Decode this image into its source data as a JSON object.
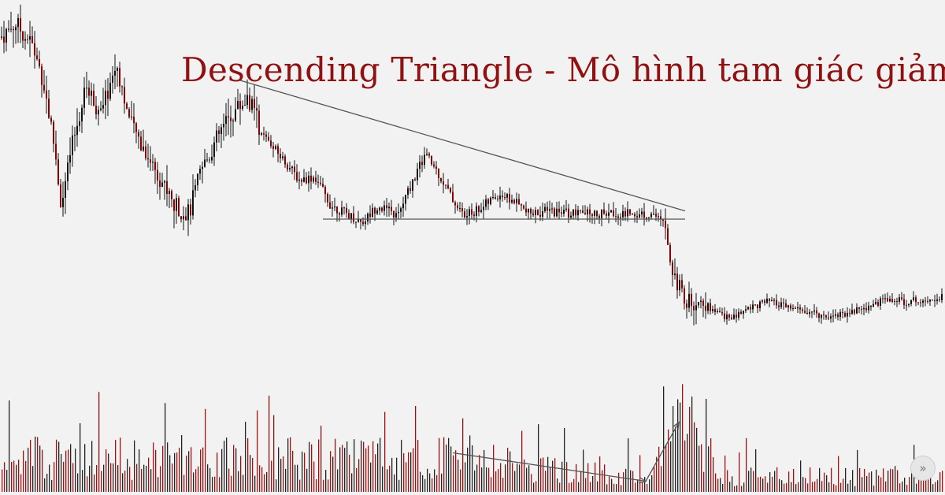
{
  "title": "Descending Triangle - Mô hình tam giác giảm",
  "next_icon": "double-chevron-right-icon",
  "colors": {
    "background": "#f2f2f2",
    "up_candle": "#111111",
    "down_candle": "#8b0000",
    "volume_down": "#a01010",
    "volume_up": "#222222",
    "trendline": "#555555",
    "title": "#8f1111"
  },
  "chart_data": {
    "type": "candlestick",
    "title": "Descending Triangle - Mô hình tam giác giảm",
    "xlabel": "",
    "ylabel": "",
    "grid": false,
    "axes_visible": false,
    "price_path": [
      [
        0,
        0.95
      ],
      [
        20,
        1.0
      ],
      [
        40,
        0.93
      ],
      [
        55,
        0.8
      ],
      [
        70,
        0.55
      ],
      [
        78,
        0.35
      ],
      [
        90,
        0.55
      ],
      [
        110,
        0.78
      ],
      [
        128,
        0.68
      ],
      [
        148,
        0.86
      ],
      [
        165,
        0.65
      ],
      [
        185,
        0.55
      ],
      [
        205,
        0.45
      ],
      [
        220,
        0.36
      ],
      [
        240,
        0.33
      ],
      [
        255,
        0.48
      ],
      [
        280,
        0.62
      ],
      [
        300,
        0.7
      ],
      [
        315,
        0.74
      ],
      [
        335,
        0.6
      ],
      [
        360,
        0.52
      ],
      [
        380,
        0.45
      ],
      [
        400,
        0.46
      ],
      [
        420,
        0.36
      ],
      [
        440,
        0.33
      ],
      [
        460,
        0.3
      ],
      [
        480,
        0.36
      ],
      [
        505,
        0.32
      ],
      [
        520,
        0.42
      ],
      [
        540,
        0.54
      ],
      [
        555,
        0.48
      ],
      [
        575,
        0.38
      ],
      [
        590,
        0.32
      ],
      [
        610,
        0.35
      ],
      [
        635,
        0.4
      ],
      [
        655,
        0.37
      ],
      [
        670,
        0.33
      ],
      [
        700,
        0.34
      ],
      [
        730,
        0.33
      ],
      [
        760,
        0.33
      ],
      [
        800,
        0.33
      ],
      [
        830,
        0.33
      ],
      [
        845,
        0.28
      ],
      [
        855,
        0.12
      ],
      [
        870,
        0.03
      ],
      [
        890,
        0.01
      ],
      [
        910,
        -0.02
      ],
      [
        930,
        -0.04
      ],
      [
        950,
        0.0
      ],
      [
        975,
        0.02
      ],
      [
        1000,
        0.0
      ],
      [
        1030,
        -0.02
      ],
      [
        1050,
        -0.03
      ],
      [
        1075,
        -0.02
      ],
      [
        1100,
        0.0
      ],
      [
        1125,
        0.03
      ],
      [
        1150,
        0.02
      ],
      [
        1175,
        0.03
      ],
      [
        1200,
        0.04
      ]
    ],
    "annotations": [
      {
        "type": "descending_resistance_line",
        "from": [
          305,
          0.8
        ],
        "to": [
          870,
          0.34
        ]
      },
      {
        "type": "horizontal_support_line",
        "from": [
          410,
          0.3
        ],
        "to": [
          870,
          0.3
        ]
      },
      {
        "type": "volume_decline_arrow",
        "from": [
          575,
          0.55
        ],
        "to": [
          820,
          0.15
        ]
      },
      {
        "type": "volume_spike_arrow",
        "from": [
          820,
          0.15
        ],
        "to": [
          862,
          0.98
        ]
      }
    ]
  }
}
